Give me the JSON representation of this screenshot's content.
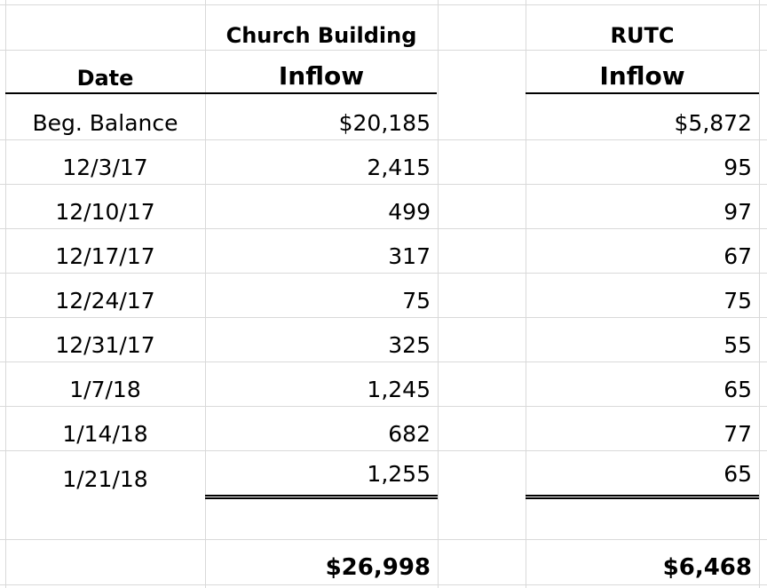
{
  "header": {
    "date_label": "Date",
    "col1_title": "Church Building",
    "col1_sub": "Inflow",
    "col2_title": "RUTC",
    "col2_sub": "Inflow"
  },
  "rows": [
    {
      "date": "Beg. Balance",
      "church": "$20,185",
      "rutc": "$5,872"
    },
    {
      "date": "12/3/17",
      "church": "2,415",
      "rutc": "95"
    },
    {
      "date": "12/10/17",
      "church": "499",
      "rutc": "97"
    },
    {
      "date": "12/17/17",
      "church": "317",
      "rutc": "67"
    },
    {
      "date": "12/24/17",
      "church": "75",
      "rutc": "75"
    },
    {
      "date": "12/31/17",
      "church": "325",
      "rutc": "55"
    },
    {
      "date": "1/7/18",
      "church": "1,245",
      "rutc": "65"
    },
    {
      "date": "1/14/18",
      "church": "682",
      "rutc": "77"
    },
    {
      "date": "1/21/18",
      "church": "1,255",
      "rutc": "65"
    }
  ],
  "totals": {
    "church": "$26,998",
    "rutc": "$6,468"
  }
}
